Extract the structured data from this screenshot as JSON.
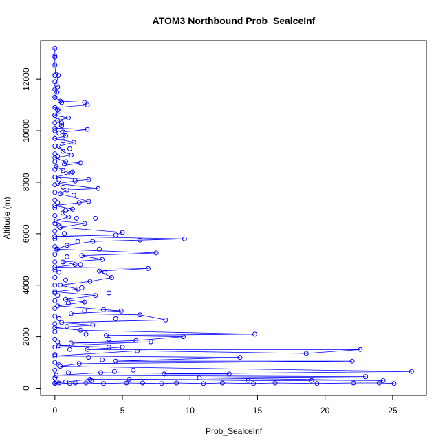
{
  "chart_data": {
    "type": "scatter",
    "title": "ATOM3 Northbound Prob_SealceInf",
    "xlabel": "Prob_SealceInf",
    "ylabel": "Altitude (m)",
    "xlim": [
      -1.06,
      27.5
    ],
    "ylim": [
      -280,
      13500
    ],
    "x_ticks": [
      0,
      5,
      10,
      15,
      20,
      25
    ],
    "y_ticks": [
      0,
      2000,
      4000,
      6000,
      8000,
      10000,
      12000
    ],
    "grid": false,
    "legend": "none",
    "style": "line with open circle markers",
    "series": [
      {
        "color": "#0000ff",
        "points": [
          [
            0.0,
            13200
          ],
          [
            0.0,
            12900
          ],
          [
            0.0,
            12850
          ],
          [
            0.0,
            12550
          ],
          [
            0.05,
            12200
          ],
          [
            0.25,
            12150
          ],
          [
            0.1,
            11800
          ],
          [
            0.0,
            11600
          ],
          [
            0.15,
            11500
          ],
          [
            0.0,
            11300
          ],
          [
            0.5,
            11100
          ],
          [
            0.4,
            11150
          ],
          [
            2.2,
            11100
          ],
          [
            2.4,
            11000
          ],
          [
            0.0,
            10900
          ],
          [
            0.3,
            10750
          ],
          [
            0.0,
            10600
          ],
          [
            1.0,
            10500
          ],
          [
            0.2,
            10400
          ],
          [
            0.5,
            10200
          ],
          [
            0.0,
            10100
          ],
          [
            2.4,
            10050
          ],
          [
            0.6,
            9950
          ],
          [
            0.8,
            9800
          ],
          [
            0.0,
            9700
          ],
          [
            1.4,
            9550
          ],
          [
            0.3,
            9400
          ],
          [
            0.6,
            9200
          ],
          [
            1.2,
            9050
          ],
          [
            0.0,
            8950
          ],
          [
            0.8,
            8800
          ],
          [
            1.9,
            8750
          ],
          [
            0.1,
            8600
          ],
          [
            0.6,
            8450
          ],
          [
            1.2,
            8350
          ],
          [
            0.0,
            8200
          ],
          [
            2.5,
            8100
          ],
          [
            1.5,
            8050
          ],
          [
            0.2,
            7950
          ],
          [
            3.2,
            7750
          ],
          [
            0.9,
            7700
          ],
          [
            0.4,
            7550
          ],
          [
            2.5,
            7250
          ],
          [
            1.8,
            7200
          ],
          [
            0.0,
            7100
          ],
          [
            1.3,
            6950
          ],
          [
            0.6,
            6800
          ],
          [
            1.0,
            6650
          ],
          [
            0.1,
            6500
          ],
          [
            2.2,
            6400
          ],
          [
            0.4,
            6250
          ],
          [
            5.0,
            6050
          ],
          [
            4.5,
            5950
          ],
          [
            0.0,
            5900
          ],
          [
            9.6,
            5800
          ],
          [
            6.3,
            5750
          ],
          [
            2.8,
            5700
          ],
          [
            0.9,
            5550
          ],
          [
            0.1,
            5400
          ],
          [
            7.5,
            5250
          ],
          [
            2.0,
            5150
          ],
          [
            3.5,
            5000
          ],
          [
            0.6,
            4900
          ],
          [
            1.5,
            4800
          ],
          [
            0.0,
            4700
          ],
          [
            6.9,
            4650
          ],
          [
            3.3,
            4550
          ],
          [
            4.2,
            4300
          ],
          [
            2.6,
            4150
          ],
          [
            0.4,
            4000
          ],
          [
            1.7,
            3850
          ],
          [
            0.0,
            3750
          ],
          [
            3.0,
            3600
          ],
          [
            0.8,
            3450
          ],
          [
            2.2,
            3350
          ],
          [
            0.2,
            3200
          ],
          [
            3.6,
            3050
          ],
          [
            4.9,
            3000
          ],
          [
            1.2,
            2900
          ],
          [
            6.3,
            2850
          ],
          [
            8.2,
            2650
          ],
          [
            0.5,
            2550
          ],
          [
            2.8,
            2450
          ],
          [
            0.0,
            2350
          ],
          [
            1.9,
            2250
          ],
          [
            14.8,
            2100
          ],
          [
            3.8,
            2050
          ],
          [
            9.5,
            2000
          ],
          [
            6.0,
            1850
          ],
          [
            1.2,
            1750
          ],
          [
            7.1,
            1800
          ],
          [
            0.3,
            1650
          ],
          [
            4.0,
            1600
          ],
          [
            5.0,
            1600
          ],
          [
            2.4,
            1500
          ],
          [
            22.6,
            1500
          ],
          [
            18.6,
            1350
          ],
          [
            6.1,
            1450
          ],
          [
            0.0,
            1250
          ],
          [
            13.7,
            1200
          ],
          [
            4.5,
            1050
          ],
          [
            22.0,
            1050
          ],
          [
            1.8,
            950
          ],
          [
            0.4,
            850
          ],
          [
            26.4,
            650
          ],
          [
            8.1,
            550
          ],
          [
            12.9,
            550
          ],
          [
            3.4,
            600
          ],
          [
            0.1,
            500
          ],
          [
            23.0,
            450
          ],
          [
            10.7,
            400
          ],
          [
            24.3,
            300
          ],
          [
            5.5,
            350
          ],
          [
            14.3,
            300
          ],
          [
            19.0,
            300
          ],
          [
            2.6,
            350
          ],
          [
            0.0,
            200
          ],
          [
            0.3,
            200
          ],
          [
            1.1,
            180
          ],
          [
            2.3,
            200
          ],
          [
            3.6,
            180
          ],
          [
            5.3,
            200
          ],
          [
            7.9,
            180
          ],
          [
            9.0,
            200
          ],
          [
            11.0,
            180
          ],
          [
            12.4,
            200
          ],
          [
            14.7,
            180
          ],
          [
            16.3,
            200
          ],
          [
            19.4,
            180
          ],
          [
            22.1,
            200
          ],
          [
            24.0,
            200
          ],
          [
            25.1,
            180
          ]
        ],
        "markers": [
          [
            0.0,
            12150
          ],
          [
            0.0,
            11900
          ],
          [
            0.0,
            11300
          ],
          [
            0.0,
            10900
          ],
          [
            0.0,
            10600
          ],
          [
            0.0,
            10300
          ],
          [
            0.0,
            10000
          ],
          [
            0.0,
            9700
          ],
          [
            0.0,
            9400
          ],
          [
            0.0,
            9100
          ],
          [
            0.0,
            8800
          ],
          [
            0.0,
            8500
          ],
          [
            0.0,
            8200
          ],
          [
            0.0,
            7900
          ],
          [
            0.0,
            7600
          ],
          [
            0.0,
            7300
          ],
          [
            0.0,
            7000
          ],
          [
            0.0,
            6700
          ],
          [
            0.0,
            6400
          ],
          [
            0.0,
            6100
          ],
          [
            0.0,
            5800
          ],
          [
            0.0,
            5500
          ],
          [
            0.0,
            5200
          ],
          [
            0.0,
            4900
          ],
          [
            0.0,
            4600
          ],
          [
            0.0,
            4300
          ],
          [
            0.0,
            4000
          ],
          [
            0.0,
            3700
          ],
          [
            0.0,
            3400
          ],
          [
            0.0,
            3100
          ],
          [
            0.0,
            2800
          ],
          [
            0.0,
            2500
          ],
          [
            0.0,
            2200
          ],
          [
            0.0,
            1900
          ],
          [
            0.0,
            1600
          ],
          [
            0.0,
            1300
          ],
          [
            0.0,
            1000
          ],
          [
            0.0,
            700
          ],
          [
            0.0,
            400
          ],
          [
            0.0,
            180
          ],
          [
            0.2,
            11700
          ],
          [
            0.2,
            10800
          ],
          [
            0.3,
            9900
          ],
          [
            0.2,
            9000
          ],
          [
            0.3,
            8100
          ],
          [
            0.2,
            7200
          ],
          [
            0.3,
            6300
          ],
          [
            0.2,
            5400
          ],
          [
            0.3,
            4500
          ],
          [
            0.2,
            3600
          ],
          [
            0.3,
            2700
          ],
          [
            0.2,
            1800
          ],
          [
            0.3,
            900
          ],
          [
            0.1,
            250
          ],
          [
            0.5,
            10300
          ],
          [
            0.6,
            9600
          ],
          [
            0.7,
            8700
          ],
          [
            0.6,
            7800
          ],
          [
            0.8,
            6900
          ],
          [
            0.7,
            6000
          ],
          [
            0.9,
            5100
          ],
          [
            0.8,
            4200
          ],
          [
            1.0,
            3300
          ],
          [
            0.9,
            2400
          ],
          [
            1.1,
            1500
          ],
          [
            1.0,
            600
          ],
          [
            1.1,
            9300
          ],
          [
            1.3,
            8400
          ],
          [
            1.4,
            7500
          ],
          [
            1.6,
            6600
          ],
          [
            1.7,
            5700
          ],
          [
            1.9,
            4800
          ],
          [
            2.0,
            3900
          ],
          [
            2.2,
            3000
          ],
          [
            2.3,
            2100
          ],
          [
            2.5,
            1200
          ],
          [
            2.7,
            300
          ],
          [
            3.0,
            6600
          ],
          [
            3.3,
            5400
          ],
          [
            3.7,
            4500
          ],
          [
            4.0,
            3700
          ],
          [
            4.5,
            2700
          ],
          [
            4.0,
            1900
          ],
          [
            3.5,
            1100
          ],
          [
            4.4,
            650
          ],
          [
            5.8,
            700
          ],
          [
            6.5,
            200
          ],
          [
            1.5,
            200
          ],
          [
            0.8,
            250
          ]
        ]
      }
    ]
  }
}
